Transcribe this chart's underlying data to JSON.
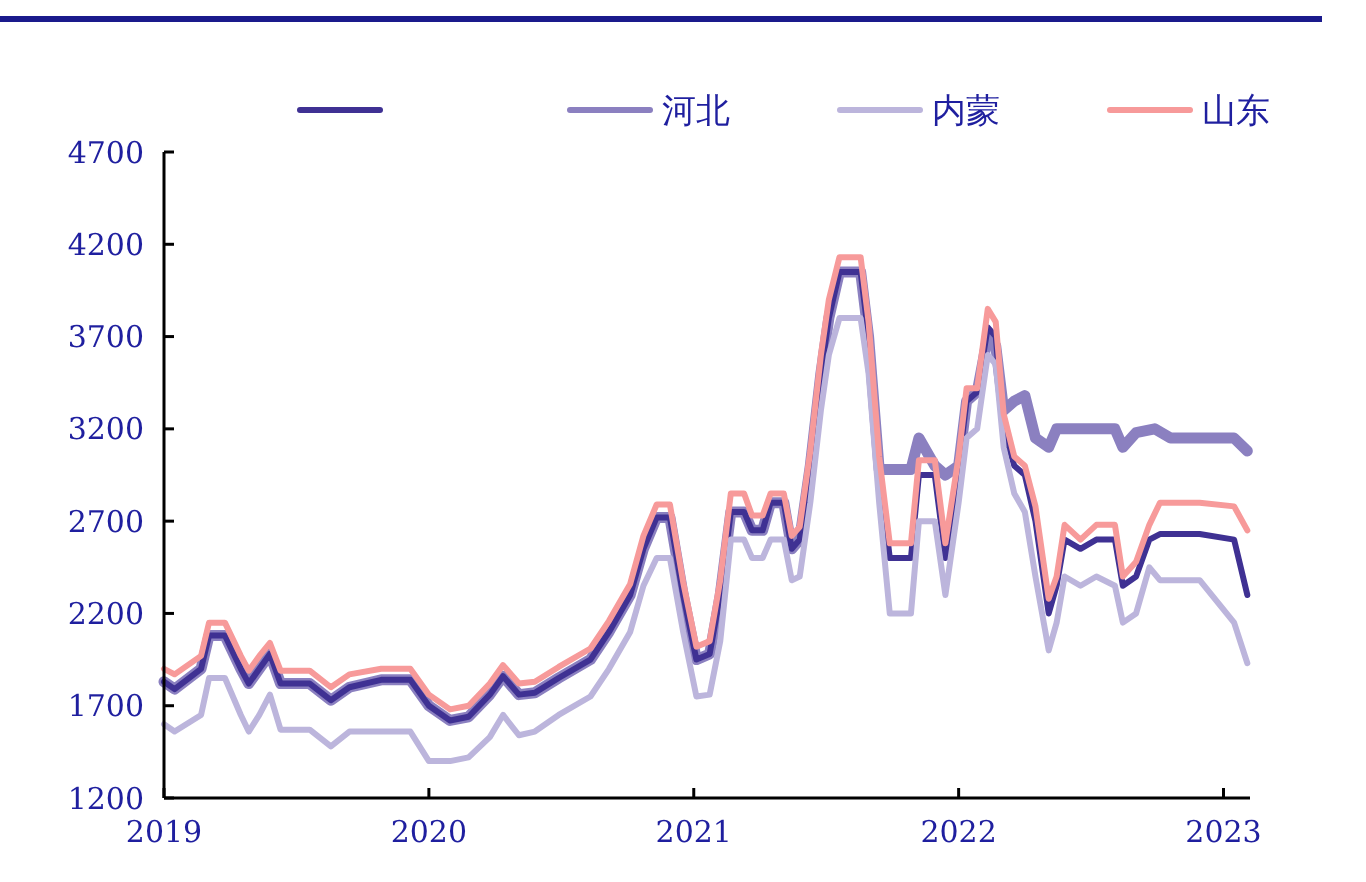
{
  "chart_data": {
    "type": "line",
    "legend": "top",
    "grid": false,
    "xlim": [
      2019,
      2023.1
    ],
    "xticks": [
      2019,
      2020,
      2021,
      2022,
      2023
    ],
    "ylim": [
      1200,
      4700
    ],
    "yticks": [
      1200,
      1700,
      2200,
      2700,
      3200,
      3700,
      4200,
      4700
    ],
    "x": [
      2019.0,
      2019.04,
      2019.14,
      2019.17,
      2019.23,
      2019.29,
      2019.32,
      2019.36,
      2019.4,
      2019.44,
      2019.55,
      2019.63,
      2019.7,
      2019.82,
      2019.93,
      2020.0,
      2020.08,
      2020.15,
      2020.23,
      2020.28,
      2020.34,
      2020.4,
      2020.49,
      2020.61,
      2020.68,
      2020.76,
      2020.81,
      2020.86,
      2020.91,
      2020.96,
      2021.01,
      2021.06,
      2021.1,
      2021.14,
      2021.19,
      2021.22,
      2021.26,
      2021.29,
      2021.34,
      2021.37,
      2021.4,
      2021.44,
      2021.48,
      2021.51,
      2021.55,
      2021.63,
      2021.66,
      2021.7,
      2021.74,
      2021.82,
      2021.85,
      2021.91,
      2021.95,
      2022.0,
      2022.03,
      2022.07,
      2022.11,
      2022.14,
      2022.17,
      2022.21,
      2022.25,
      2022.29,
      2022.34,
      2022.37,
      2022.4,
      2022.46,
      2022.52,
      2022.59,
      2022.62,
      2022.67,
      2022.72,
      2022.76,
      2022.91,
      2023.04,
      2023.09
    ],
    "series": [
      {
        "color": "#3f3193",
        "values": [
          1830,
          1790,
          1900,
          2080,
          2080,
          1900,
          1820,
          1900,
          1980,
          1820,
          1820,
          1730,
          1800,
          1840,
          1840,
          1700,
          1620,
          1640,
          1760,
          1860,
          1760,
          1770,
          1850,
          1950,
          2100,
          2300,
          2550,
          2720,
          2720,
          2300,
          1950,
          1980,
          2300,
          2750,
          2750,
          2650,
          2650,
          2800,
          2800,
          2550,
          2600,
          3000,
          3500,
          3800,
          4050,
          4050,
          3700,
          3000,
          2500,
          2500,
          2950,
          2950,
          2500,
          3000,
          3350,
          3400,
          3750,
          3700,
          3200,
          3000,
          2950,
          2700,
          2200,
          2350,
          2600,
          2550,
          2600,
          2600,
          2350,
          2400,
          2600,
          2630,
          2630,
          2600,
          2300
        ]
      },
      {
        "name": "河北",
        "color": "#8b80c0",
        "x": [
          2019.0,
          2019.04,
          2019.14,
          2019.17,
          2019.23,
          2019.29,
          2019.32,
          2019.36,
          2019.4,
          2019.44,
          2019.55,
          2019.63,
          2019.7,
          2019.82,
          2019.93,
          2020.0,
          2020.08,
          2020.15,
          2020.23,
          2020.28,
          2020.34,
          2020.4,
          2020.49,
          2020.61,
          2020.68,
          2020.76,
          2020.81,
          2020.86,
          2020.91,
          2020.96,
          2021.01,
          2021.06,
          2021.1,
          2021.14,
          2021.19,
          2021.22,
          2021.26,
          2021.29,
          2021.34,
          2021.37,
          2021.4,
          2021.44,
          2021.48,
          2021.51,
          2021.55,
          2021.63,
          2021.66,
          2021.7,
          2021.82,
          2021.85,
          2021.91,
          2021.95,
          2022.0,
          2022.03,
          2022.07,
          2022.11,
          2022.14,
          2022.17,
          2022.21,
          2022.25,
          2022.29,
          2022.34,
          2022.37,
          2022.59,
          2022.62,
          2022.67,
          2022.74,
          2022.8,
          2023.04,
          2023.09
        ],
        "values": [
          1830,
          1790,
          1900,
          2080,
          2080,
          1900,
          1820,
          1900,
          1980,
          1820,
          1820,
          1730,
          1800,
          1840,
          1840,
          1700,
          1620,
          1640,
          1760,
          1860,
          1760,
          1770,
          1850,
          1950,
          2100,
          2300,
          2550,
          2720,
          2720,
          2300,
          1950,
          1980,
          2300,
          2750,
          2750,
          2650,
          2650,
          2800,
          2800,
          2550,
          2600,
          3000,
          3500,
          3800,
          4050,
          4050,
          3700,
          2980,
          2980,
          3150,
          3000,
          2950,
          3000,
          3350,
          3400,
          3700,
          3650,
          3300,
          3350,
          3380,
          3150,
          3100,
          3200,
          3200,
          3100,
          3180,
          3200,
          3150,
          3150,
          3080
        ]
      },
      {
        "name": "内蒙",
        "color": "#bcb5dc",
        "values": [
          1600,
          1560,
          1650,
          1850,
          1850,
          1650,
          1560,
          1650,
          1760,
          1570,
          1570,
          1480,
          1560,
          1560,
          1560,
          1400,
          1400,
          1420,
          1530,
          1650,
          1540,
          1560,
          1650,
          1750,
          1900,
          2100,
          2350,
          2500,
          2500,
          2100,
          1750,
          1760,
          2050,
          2600,
          2600,
          2500,
          2500,
          2600,
          2600,
          2380,
          2400,
          2800,
          3300,
          3600,
          3800,
          3800,
          3500,
          2800,
          2200,
          2200,
          2700,
          2700,
          2300,
          2800,
          3150,
          3200,
          3600,
          3550,
          3100,
          2850,
          2750,
          2400,
          2000,
          2150,
          2400,
          2350,
          2400,
          2350,
          2150,
          2200,
          2450,
          2380,
          2380,
          2150,
          1930
        ]
      },
      {
        "name": "山东",
        "color": "#f79a9a",
        "values": [
          1900,
          1870,
          1970,
          2150,
          2150,
          1970,
          1890,
          1970,
          2040,
          1890,
          1890,
          1800,
          1870,
          1900,
          1900,
          1760,
          1680,
          1700,
          1820,
          1920,
          1820,
          1830,
          1910,
          2010,
          2160,
          2360,
          2620,
          2790,
          2790,
          2370,
          2020,
          2050,
          2380,
          2850,
          2850,
          2730,
          2730,
          2850,
          2850,
          2620,
          2670,
          3080,
          3600,
          3900,
          4130,
          4130,
          3780,
          3050,
          2580,
          2580,
          3030,
          3030,
          2580,
          3050,
          3420,
          3420,
          3850,
          3780,
          3280,
          3050,
          3000,
          2780,
          2280,
          2400,
          2680,
          2600,
          2680,
          2680,
          2400,
          2480,
          2680,
          2800,
          2800,
          2780,
          2650
        ]
      }
    ]
  }
}
